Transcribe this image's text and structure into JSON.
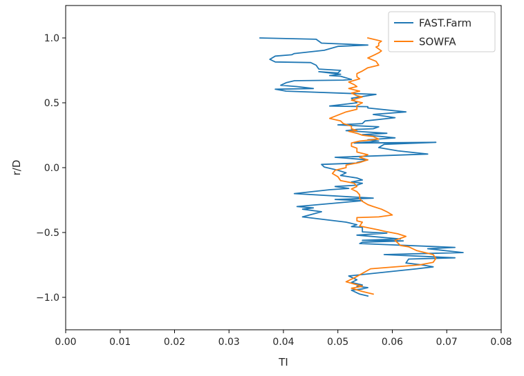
{
  "chart_data": {
    "type": "line",
    "title": "",
    "xlabel": "TI",
    "ylabel": "r/D",
    "xlim": [
      0.0,
      0.08
    ],
    "ylim": [
      -1.25,
      1.25
    ],
    "xticks": [
      "0.00",
      "0.01",
      "0.02",
      "0.03",
      "0.04",
      "0.05",
      "0.06",
      "0.07",
      "0.08"
    ],
    "yticks": [
      "1.0",
      "0.5",
      "0.0",
      "−0.5",
      "−1.0"
    ],
    "grid": false,
    "legend_position": "top-right",
    "series": [
      {
        "name": "FAST.Farm",
        "color": "#1f77b4",
        "x": [
          0.0357,
          0.046,
          0.047,
          0.0555,
          0.05,
          0.0475,
          0.042,
          0.0415,
          0.0385,
          0.0375,
          0.0385,
          0.045,
          0.046,
          0.0465,
          0.0505,
          0.05,
          0.0465,
          0.0505,
          0.0485,
          0.0505,
          0.0525,
          0.051,
          0.042,
          0.0405,
          0.0395,
          0.0425,
          0.0455,
          0.0385,
          0.0405,
          0.057,
          0.0525,
          0.0535,
          0.0485,
          0.0555,
          0.0555,
          0.0625,
          0.0565,
          0.0605,
          0.055,
          0.0545,
          0.05,
          0.0575,
          0.0565,
          0.0535,
          0.0515,
          0.059,
          0.0545,
          0.0605,
          0.0555,
          0.0575,
          0.053,
          0.068,
          0.0585,
          0.0575,
          0.061,
          0.0665,
          0.0495,
          0.0555,
          0.0535,
          0.0535,
          0.047,
          0.0475,
          0.05,
          0.0515,
          0.0505,
          0.0535,
          0.0545,
          0.0525,
          0.0545,
          0.0535,
          0.0495,
          0.052,
          0.0485,
          0.042,
          0.0565,
          0.0495,
          0.0545,
          0.0425,
          0.0455,
          0.0435,
          0.047,
          0.0435,
          0.0515,
          0.0535,
          0.0525,
          0.0545,
          0.0545,
          0.059,
          0.0535,
          0.0615,
          0.0545,
          0.062,
          0.0545,
          0.054,
          0.0715,
          0.0665,
          0.073,
          0.0585,
          0.0715,
          0.063,
          0.0625,
          0.0655,
          0.0675,
          0.0645,
          0.052,
          0.0535,
          0.0525,
          0.0545,
          0.0535,
          0.0555,
          0.0545,
          0.0525,
          0.054,
          0.0555
        ],
        "y": [
          1.0,
          0.99,
          0.96,
          0.945,
          0.935,
          0.905,
          0.88,
          0.87,
          0.86,
          0.835,
          0.815,
          0.81,
          0.79,
          0.76,
          0.75,
          0.73,
          0.74,
          0.72,
          0.71,
          0.705,
          0.68,
          0.675,
          0.67,
          0.655,
          0.635,
          0.625,
          0.61,
          0.605,
          0.59,
          0.565,
          0.535,
          0.5,
          0.475,
          0.47,
          0.46,
          0.43,
          0.41,
          0.385,
          0.36,
          0.34,
          0.33,
          0.315,
          0.3,
          0.295,
          0.285,
          0.265,
          0.255,
          0.23,
          0.215,
          0.205,
          0.19,
          0.195,
          0.18,
          0.155,
          0.13,
          0.105,
          0.08,
          0.06,
          0.04,
          0.035,
          0.025,
          0.005,
          -0.02,
          -0.04,
          -0.06,
          -0.08,
          -0.095,
          -0.11,
          -0.12,
          -0.135,
          -0.145,
          -0.16,
          -0.17,
          -0.2,
          -0.235,
          -0.245,
          -0.255,
          -0.3,
          -0.31,
          -0.32,
          -0.34,
          -0.38,
          -0.42,
          -0.44,
          -0.455,
          -0.46,
          -0.495,
          -0.505,
          -0.52,
          -0.55,
          -0.56,
          -0.565,
          -0.575,
          -0.585,
          -0.615,
          -0.625,
          -0.655,
          -0.67,
          -0.695,
          -0.705,
          -0.735,
          -0.75,
          -0.765,
          -0.78,
          -0.835,
          -0.865,
          -0.885,
          -0.905,
          -0.915,
          -0.925,
          -0.935,
          -0.945,
          -0.975,
          -0.99
        ]
      },
      {
        "name": "SOWFA",
        "color": "#ff7f0e",
        "x": [
          0.0555,
          0.057,
          0.058,
          0.0575,
          0.0575,
          0.057,
          0.058,
          0.0575,
          0.0565,
          0.0555,
          0.057,
          0.0575,
          0.0555,
          0.0545,
          0.0535,
          0.0535,
          0.054,
          0.052,
          0.053,
          0.0535,
          0.052,
          0.054,
          0.0525,
          0.0535,
          0.0545,
          0.0525,
          0.0545,
          0.0535,
          0.0535,
          0.0515,
          0.0485,
          0.0505,
          0.051,
          0.0525,
          0.0525,
          0.0535,
          0.052,
          0.0535,
          0.0545,
          0.0565,
          0.0575,
          0.054,
          0.0525,
          0.0525,
          0.0535,
          0.0535,
          0.0555,
          0.054,
          0.0555,
          0.054,
          0.0515,
          0.0515,
          0.0495,
          0.049,
          0.05,
          0.0505,
          0.053,
          0.0535,
          0.0525,
          0.0535,
          0.054,
          0.054,
          0.0545,
          0.0555,
          0.0565,
          0.058,
          0.059,
          0.06,
          0.0575,
          0.0535,
          0.0535,
          0.0545,
          0.054,
          0.0575,
          0.0585,
          0.061,
          0.0625,
          0.0605,
          0.0615,
          0.063,
          0.0645,
          0.0675,
          0.068,
          0.0675,
          0.065,
          0.056,
          0.053,
          0.0515,
          0.0545,
          0.0525,
          0.0545,
          0.0565
        ],
        "y": [
          1.0,
          0.985,
          0.975,
          0.96,
          0.94,
          0.93,
          0.9,
          0.885,
          0.865,
          0.845,
          0.82,
          0.79,
          0.77,
          0.745,
          0.725,
          0.7,
          0.685,
          0.66,
          0.64,
          0.625,
          0.61,
          0.59,
          0.575,
          0.555,
          0.545,
          0.52,
          0.5,
          0.48,
          0.45,
          0.43,
          0.38,
          0.36,
          0.34,
          0.32,
          0.3,
          0.285,
          0.28,
          0.265,
          0.25,
          0.24,
          0.22,
          0.205,
          0.19,
          0.165,
          0.15,
          0.12,
          0.1,
          0.08,
          0.06,
          0.04,
          0.02,
          0.0,
          -0.02,
          -0.045,
          -0.07,
          -0.1,
          -0.12,
          -0.145,
          -0.165,
          -0.185,
          -0.21,
          -0.24,
          -0.26,
          -0.285,
          -0.3,
          -0.32,
          -0.34,
          -0.365,
          -0.38,
          -0.385,
          -0.41,
          -0.42,
          -0.45,
          -0.48,
          -0.49,
          -0.51,
          -0.53,
          -0.56,
          -0.6,
          -0.61,
          -0.64,
          -0.67,
          -0.7,
          -0.73,
          -0.75,
          -0.78,
          -0.85,
          -0.88,
          -0.915,
          -0.93,
          -0.955,
          -0.975
        ]
      }
    ]
  }
}
